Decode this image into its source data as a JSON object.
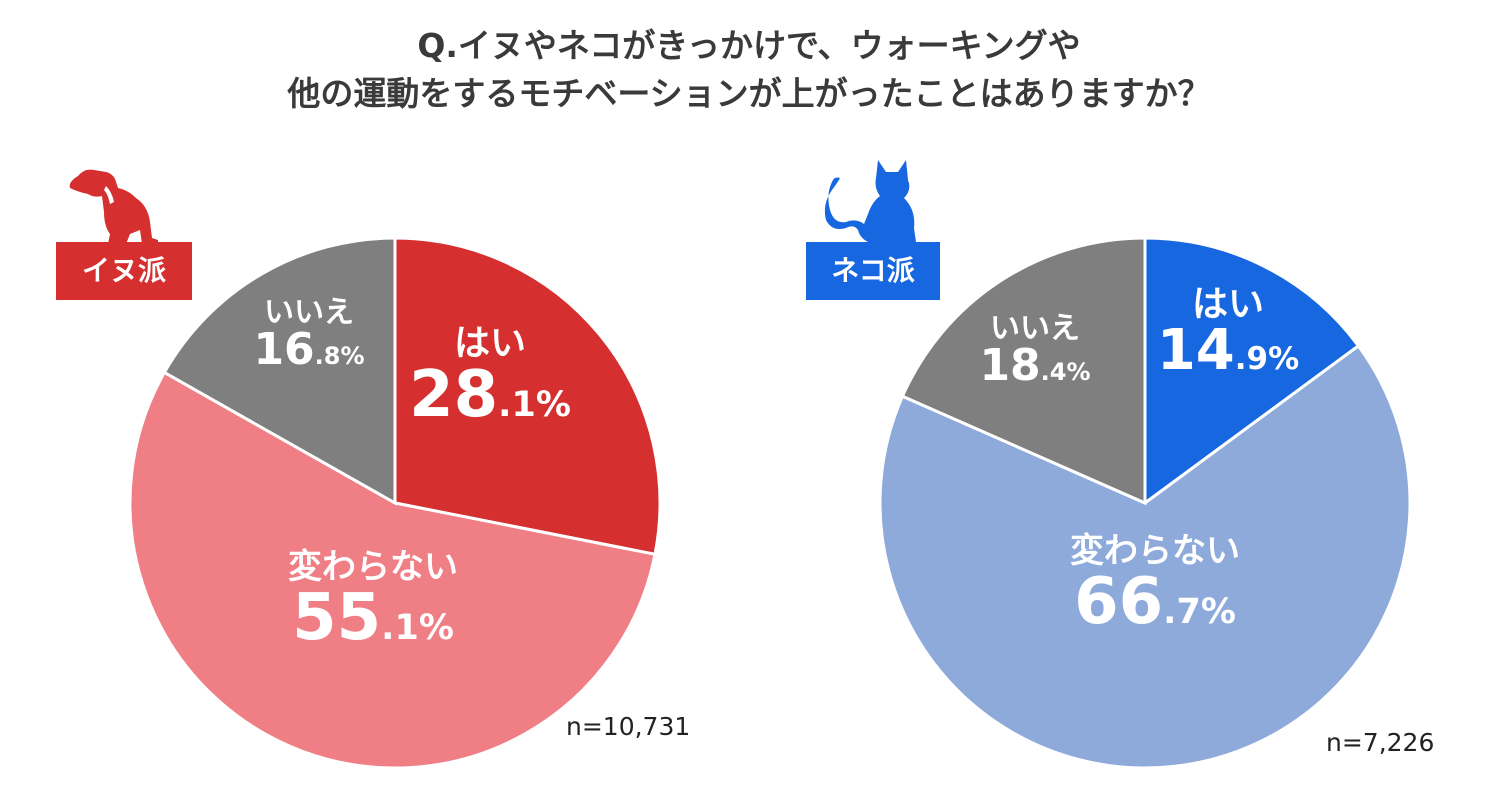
{
  "title": {
    "line1": "Q.イヌやネコがきっかけで、ウォーキングや",
    "line2": "他の運動をするモチベーションが上がったことはありますか？"
  },
  "chart_data": [
    {
      "type": "pie",
      "group": "イヌ派",
      "badge_color": "#d52f2f",
      "sample_size": "n=10,731",
      "slices": [
        {
          "label": "はい",
          "value": 28.1,
          "value_int": "28",
          "value_dec": ".1%",
          "color": "#d52f2f"
        },
        {
          "label": "変わらない",
          "value": 55.1,
          "value_int": "55",
          "value_dec": ".1%",
          "color": "#ef7e85"
        },
        {
          "label": "いいえ",
          "value": 16.8,
          "value_int": "16",
          "value_dec": ".8%",
          "color": "#7f7f7f"
        }
      ]
    },
    {
      "type": "pie",
      "group": "ネコ派",
      "badge_color": "#1767e0",
      "sample_size": "n=7,226",
      "slices": [
        {
          "label": "はい",
          "value": 14.9,
          "value_int": "14",
          "value_dec": ".9%",
          "color": "#1767e0"
        },
        {
          "label": "変わらない",
          "value": 66.7,
          "value_int": "66",
          "value_dec": ".7%",
          "color": "#8eaadb"
        },
        {
          "label": "いいえ",
          "value": 18.4,
          "value_int": "18",
          "value_dec": ".4%",
          "color": "#7f7f7f"
        }
      ]
    }
  ],
  "icons": {
    "dog": "dog-silhouette-icon",
    "cat": "cat-silhouette-icon"
  }
}
